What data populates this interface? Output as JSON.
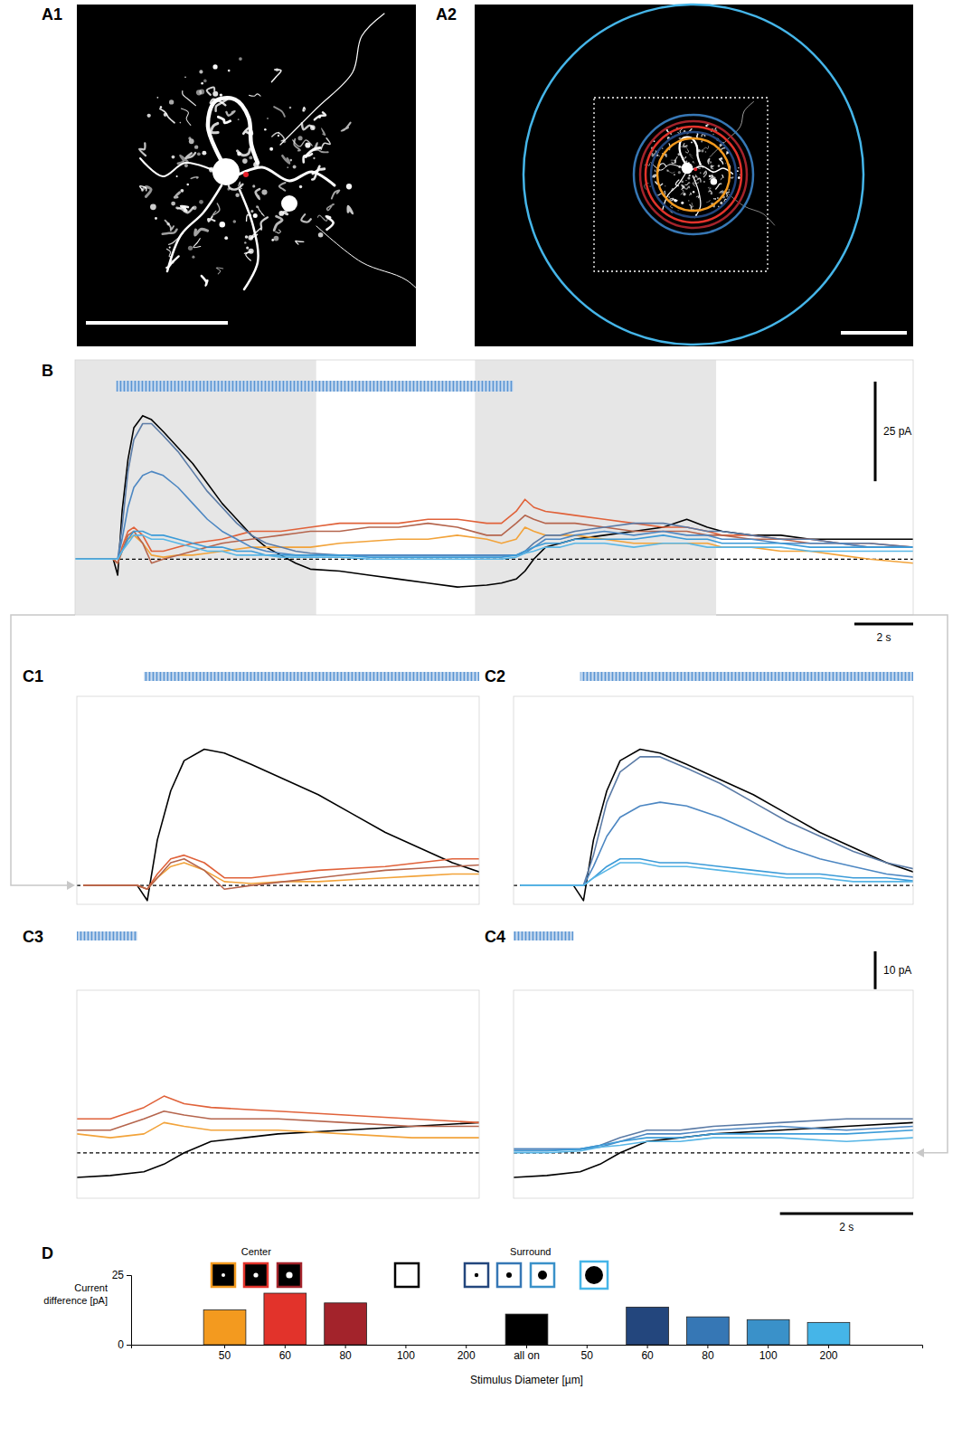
{
  "chart_data": [
    {
      "panel": "B",
      "type": "line",
      "x": [
        0,
        0.5,
        1,
        1.3,
        1.45,
        1.6,
        1.8,
        2,
        2.3,
        2.6,
        3,
        3.5,
        4,
        4.5,
        5,
        5.5,
        6,
        6.5,
        7,
        7.5,
        8,
        9,
        10,
        11,
        12,
        13,
        14,
        14.5,
        15,
        15.3,
        15.6,
        16,
        16.5,
        17,
        18,
        19,
        20,
        20.8,
        21.5,
        22,
        23,
        24,
        25,
        26,
        27,
        28.5
      ],
      "series": [
        {
          "color": "#000000",
          "values": [
            0,
            0,
            0,
            0,
            -4,
            12,
            25,
            33,
            36,
            35,
            32,
            28,
            24,
            19,
            14,
            10,
            6,
            3,
            1,
            -1,
            -2.5,
            -3,
            -4,
            -5,
            -6,
            -7,
            -6.5,
            -6,
            -5,
            -3,
            0,
            3,
            4,
            5,
            6,
            7,
            8,
            10,
            8,
            7,
            6,
            6,
            5,
            5,
            5,
            5
          ]
        },
        {
          "color": "#f2a33a",
          "values": [
            0,
            0,
            0,
            0,
            -1,
            2,
            5,
            6,
            4,
            1,
            0.5,
            1,
            1,
            1.5,
            2,
            2.5,
            3,
            3,
            3,
            3,
            3,
            4,
            4.5,
            5,
            5,
            6,
            5,
            4,
            5,
            8,
            7,
            6,
            6,
            6,
            5,
            4,
            4,
            4,
            4,
            3,
            3,
            2,
            2,
            1,
            0,
            -1
          ]
        },
        {
          "color": "#e0623a",
          "values": [
            0,
            0,
            0,
            0,
            -1,
            3,
            7,
            8,
            6,
            2,
            2,
            3,
            4,
            4.5,
            5,
            6,
            7,
            7,
            7,
            7.5,
            8,
            9,
            9,
            9,
            10,
            10,
            9,
            9,
            12,
            15,
            13,
            12,
            11.5,
            11,
            10,
            9,
            8,
            8,
            7,
            6,
            6,
            5,
            5,
            4,
            4,
            3
          ]
        },
        {
          "color": "#b5654d",
          "values": [
            0,
            0,
            0,
            0,
            -1,
            2,
            6,
            7,
            4,
            -1,
            0,
            1,
            2,
            3,
            4,
            4.5,
            5,
            5.5,
            6,
            6.5,
            7,
            7,
            8,
            8,
            9,
            8,
            6,
            6,
            9,
            11,
            10,
            9,
            9,
            9,
            8,
            7,
            7,
            7,
            6,
            6,
            5,
            5,
            4,
            4,
            3,
            3
          ]
        },
        {
          "color": "#5b7ba6",
          "values": [
            0,
            0,
            0,
            0,
            0,
            8,
            22,
            30,
            34,
            34,
            31,
            27,
            22,
            17,
            13,
            9,
            6,
            4,
            3,
            2,
            1.5,
            1,
            1,
            1,
            1,
            1,
            1,
            1,
            1,
            2,
            4,
            6,
            6,
            7,
            8,
            9,
            9,
            8,
            7,
            7,
            6,
            5,
            5,
            4,
            4,
            3
          ]
        },
        {
          "color": "#4d87c2",
          "values": [
            0,
            0,
            0,
            0,
            0,
            5,
            13,
            18,
            21,
            22,
            21,
            18,
            14,
            10,
            7,
            5,
            3,
            2,
            1.5,
            1,
            1,
            1,
            1,
            1,
            1,
            1,
            1,
            1,
            1,
            1.5,
            3,
            5,
            5,
            6,
            7,
            6,
            7,
            6,
            6,
            5,
            5,
            4,
            4,
            4,
            3,
            3
          ]
        },
        {
          "color": "#3b9bd8",
          "values": [
            0,
            0,
            0,
            0,
            0,
            2,
            5,
            7,
            7,
            6,
            6,
            5,
            4,
            3,
            3,
            2,
            2,
            1,
            1,
            1,
            1,
            1,
            0.5,
            0.5,
            0.5,
            0.5,
            0.5,
            0.5,
            1,
            2,
            3,
            4,
            4,
            5,
            5,
            5,
            6,
            5,
            5,
            4,
            4,
            4,
            3,
            3,
            3,
            3
          ]
        },
        {
          "color": "#58b6e6",
          "values": [
            0,
            0,
            0,
            0,
            0,
            2,
            4,
            6,
            6,
            5,
            5,
            4,
            3,
            2,
            2,
            1,
            1,
            1,
            0.5,
            0.5,
            0.5,
            0.5,
            0,
            0,
            0,
            0,
            0,
            0,
            0.5,
            1.5,
            2,
            3,
            3,
            4,
            4,
            3,
            4,
            4,
            3,
            3,
            3,
            3,
            2,
            2,
            2,
            2
          ]
        }
      ],
      "xlim": [
        0,
        28.5
      ],
      "ylim": [
        -14,
        50
      ],
      "tick_labels": false,
      "baseline": 0,
      "stimulus": [
        1.4,
        14.9
      ],
      "shaded": [
        [
          0,
          8.2
        ],
        [
          13.6,
          21.8
        ]
      ],
      "scale_bars": {
        "y": {
          "value": 25,
          "label": "25 pA"
        },
        "x": {
          "value": 2,
          "label": "2 s"
        }
      }
    },
    {
      "panel": "C1",
      "type": "line",
      "x": [
        0.5,
        1,
        1.3,
        1.45,
        1.6,
        1.8,
        2,
        2.3,
        2.6,
        3,
        3.5,
        4,
        4.5,
        5,
        5.5,
        6,
        6.5
      ],
      "series": [
        {
          "color": "#000000",
          "values": [
            0,
            0,
            0,
            -4,
            12,
            25,
            33,
            36,
            35,
            32,
            28,
            24,
            19,
            14,
            10,
            6,
            3
          ]
        },
        {
          "color": "#f2a33a",
          "values": [
            0,
            0,
            0,
            -1,
            2,
            5,
            6,
            4,
            1,
            0.5,
            1,
            1,
            1.5,
            2,
            2.5,
            3,
            3
          ]
        },
        {
          "color": "#e0623a",
          "values": [
            0,
            0,
            0,
            -1,
            3,
            7,
            8,
            6,
            2,
            2,
            3,
            4,
            4.5,
            5,
            6,
            7,
            7
          ]
        },
        {
          "color": "#b5654d",
          "values": [
            0,
            0,
            0,
            -1,
            2,
            6,
            7,
            4,
            -1,
            0,
            1,
            2,
            3,
            4,
            4.5,
            5,
            5.5
          ]
        }
      ],
      "xlim": [
        0.4,
        6.4
      ],
      "ylim": [
        -5,
        50
      ],
      "tick_labels": false,
      "baseline": 0,
      "stimulus": [
        1.4,
        14.9
      ]
    },
    {
      "panel": "C2",
      "type": "line",
      "x": [
        0.5,
        1,
        1.3,
        1.45,
        1.6,
        1.8,
        2,
        2.3,
        2.6,
        3,
        3.5,
        4,
        4.5,
        5,
        5.5,
        6,
        6.5
      ],
      "series": [
        {
          "color": "#000000",
          "values": [
            0,
            0,
            0,
            -4,
            12,
            25,
            33,
            36,
            35,
            32,
            28,
            24,
            19,
            14,
            10,
            6,
            3
          ]
        },
        {
          "color": "#5b7ba6",
          "values": [
            0,
            0,
            0,
            0,
            8,
            22,
            30,
            34,
            34,
            31,
            27,
            22,
            17,
            13,
            9,
            6,
            4
          ]
        },
        {
          "color": "#4d87c2",
          "values": [
            0,
            0,
            0,
            0,
            5,
            13,
            18,
            21,
            22,
            21,
            18,
            14,
            10,
            7,
            5,
            3,
            2
          ]
        },
        {
          "color": "#3b9bd8",
          "values": [
            0,
            0,
            0,
            0,
            2,
            5,
            7,
            7,
            6,
            6,
            5,
            4,
            3,
            3,
            2,
            2,
            1
          ]
        },
        {
          "color": "#58b6e6",
          "values": [
            0,
            0,
            0,
            0,
            2,
            4,
            6,
            6,
            5,
            5,
            4,
            3,
            2,
            2,
            1,
            1,
            1
          ]
        }
      ],
      "xlim": [
        0.4,
        6.4
      ],
      "ylim": [
        -5,
        50
      ],
      "tick_labels": false,
      "baseline": 0,
      "stimulus": [
        1.4,
        14.9
      ],
      "scale_bars": {
        "y": {
          "value": 10,
          "label": "10 pA"
        }
      }
    },
    {
      "panel": "C3",
      "type": "line",
      "x": [
        14,
        14.5,
        15,
        15.3,
        15.6,
        16,
        16.5,
        17,
        18,
        19,
        20
      ],
      "series": [
        {
          "color": "#000000",
          "values": [
            -6.5,
            -6,
            -5,
            -3,
            0,
            3,
            4,
            5,
            6,
            7,
            8
          ]
        },
        {
          "color": "#f2a33a",
          "values": [
            5,
            4,
            5,
            8,
            7,
            6,
            6,
            6,
            5,
            4,
            4
          ]
        },
        {
          "color": "#e0623a",
          "values": [
            9,
            9,
            12,
            15,
            13,
            12,
            11.5,
            11,
            10,
            9,
            8
          ]
        },
        {
          "color": "#b5654d",
          "values": [
            6,
            6,
            9,
            11,
            10,
            9,
            9,
            9,
            8,
            7,
            7
          ]
        }
      ],
      "xlim": [
        14,
        20
      ],
      "ylim": [
        -12,
        43
      ],
      "tick_labels": false,
      "baseline": 0,
      "stimulus": [
        1.4,
        14.9
      ]
    },
    {
      "panel": "C4",
      "type": "line",
      "x": [
        14,
        14.5,
        15,
        15.3,
        15.6,
        16,
        16.5,
        17,
        18,
        19,
        20
      ],
      "series": [
        {
          "color": "#000000",
          "values": [
            -6.5,
            -6,
            -5,
            -3,
            0,
            3,
            4,
            5,
            6,
            7,
            8
          ]
        },
        {
          "color": "#5b7ba6",
          "values": [
            1,
            1,
            1,
            2,
            4,
            6,
            6,
            7,
            8,
            9,
            9
          ]
        },
        {
          "color": "#4d87c2",
          "values": [
            1,
            1,
            1,
            1.5,
            3,
            5,
            5,
            6,
            7,
            6,
            7
          ]
        },
        {
          "color": "#3b9bd8",
          "values": [
            0.5,
            0.5,
            1,
            2,
            3,
            4,
            4,
            5,
            5,
            5,
            6
          ]
        },
        {
          "color": "#58b6e6",
          "values": [
            0,
            0,
            0.5,
            1.5,
            2,
            3,
            3,
            4,
            4,
            3,
            4
          ]
        }
      ],
      "xlim": [
        14,
        20
      ],
      "ylim": [
        -12,
        43
      ],
      "tick_labels": false,
      "baseline": 0,
      "stimulus": [
        1.4,
        14.9
      ],
      "scale_bars": {
        "x": {
          "value": 2,
          "label": "2 s"
        }
      }
    },
    {
      "panel": "D",
      "type": "bar",
      "categories": [
        "50",
        "60",
        "80",
        "100",
        "200",
        "all on",
        "50",
        "60",
        "80",
        "100",
        "200"
      ],
      "values": [
        12.5,
        18.5,
        15,
        null,
        null,
        11,
        null,
        13.5,
        10,
        9,
        8
      ],
      "colors": [
        "#f39a1f",
        "#e2332b",
        "#a3232b",
        null,
        null,
        "#000000",
        null,
        "#23467d",
        "#3677b5",
        "#3a91c9",
        "#45b5e8"
      ],
      "ylim": [
        0,
        25
      ],
      "yticks": [
        0,
        25
      ],
      "ylabel": "Current difference [pA]",
      "xlabel": "Stimulus Diameter [µm]",
      "group_labels": [
        "Center",
        "Surround"
      ]
    }
  ],
  "images": [
    {
      "panel": "A1"
    },
    {
      "panel": "A2"
    }
  ]
}
